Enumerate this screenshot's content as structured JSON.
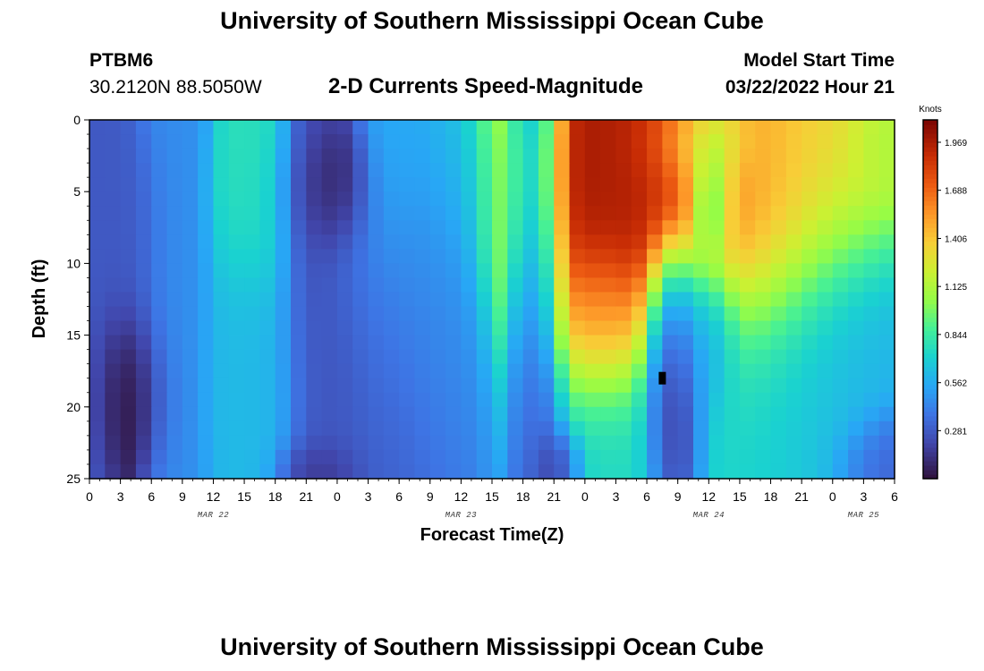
{
  "page": {
    "title_top": "University of Southern Mississippi Ocean Cube",
    "title_bottom": "University of Southern Mississippi Ocean Cube",
    "station": "PTBM6",
    "coords": "30.2120N  88.5050W",
    "subtitle": "2-D Currents Speed-Magnitude",
    "model_start_label": "Model Start Time",
    "model_start_value": "03/22/2022 Hour 21"
  },
  "chart_data": {
    "type": "heatmap",
    "title": "2-D Currents Speed-Magnitude",
    "xlabel": "Forecast Time(Z)",
    "ylabel": "Depth (ft)",
    "xlim": [
      0,
      78
    ],
    "ylim": [
      0,
      25
    ],
    "x_tick_labels": [
      "0",
      "3",
      "6",
      "9",
      "12",
      "15",
      "18",
      "21",
      "0",
      "3",
      "6",
      "9",
      "12",
      "15",
      "18",
      "21",
      "0",
      "3",
      "6",
      "9",
      "12",
      "15",
      "18",
      "21",
      "0",
      "3",
      "6"
    ],
    "y_tick_values": [
      0,
      5,
      10,
      15,
      20,
      25
    ],
    "y_tick_labels": [
      "0",
      "5",
      "10",
      "15",
      "20",
      "25"
    ],
    "day_labels": [
      {
        "label": "MAR 22",
        "x": 12
      },
      {
        "label": "MAR 23",
        "x": 36
      },
      {
        "label": "MAR 24",
        "x": 60
      },
      {
        "label": "MAR 25",
        "x": 75
      }
    ],
    "colorbar": {
      "title": "Knots",
      "min": 0,
      "max": 2.1,
      "tick_values": [
        0.281,
        0.562,
        0.844,
        1.125,
        1.406,
        1.688,
        1.969
      ],
      "tick_labels": [
        "0.281",
        "0.562",
        "0.844",
        "1.125",
        "1.406",
        "1.688",
        "1.969"
      ]
    },
    "grid_cols": 52,
    "grid_rows": 25,
    "speed_features_knots": [
      {
        "x": 0,
        "depth": 12,
        "sx": 1.5,
        "sy": 30,
        "value": 0.28
      },
      {
        "x": 3.8,
        "depth": 19.5,
        "sx": 2.2,
        "sy": 3.6,
        "value": 0.01
      },
      {
        "x": 3.8,
        "depth": 8,
        "sx": 2,
        "sy": 5,
        "value": 0.28
      },
      {
        "x": 8,
        "depth": 12,
        "sx": 1.8,
        "sy": 30,
        "value": 0.46
      },
      {
        "x": 16.5,
        "depth": 4.5,
        "sx": 2.4,
        "sy": 4.5,
        "value": 0.78
      },
      {
        "x": 16.5,
        "depth": 19,
        "sx": 3,
        "sy": 6,
        "value": 0.62
      },
      {
        "x": 21.5,
        "depth": 12,
        "sx": 1.5,
        "sy": 30,
        "value": 0.22
      },
      {
        "x": 23,
        "depth": 4.8,
        "sx": 2.4,
        "sy": 2.6,
        "value": 0.0
      },
      {
        "x": 22,
        "depth": 24.5,
        "sx": 2,
        "sy": 1.2,
        "value": 0.05
      },
      {
        "x": 28,
        "depth": 17.5,
        "sx": 4.5,
        "sy": 7,
        "value": 0.3
      },
      {
        "x": 24,
        "depth": 18.5,
        "sx": 1.6,
        "sy": 6,
        "value": 0.25
      },
      {
        "x": 29.5,
        "depth": 3,
        "sx": 1.6,
        "sy": 4,
        "value": 0.58
      },
      {
        "x": 31,
        "depth": 10,
        "sx": 4,
        "sy": 6,
        "value": 0.5
      },
      {
        "x": 35.5,
        "depth": 3.5,
        "sx": 2.5,
        "sy": 4,
        "value": 0.6
      },
      {
        "x": 34.5,
        "depth": 14,
        "sx": 2.5,
        "sy": 6,
        "value": 0.45
      },
      {
        "x": 39.5,
        "depth": 4.5,
        "sx": 1.4,
        "sy": 5,
        "value": 0.92
      },
      {
        "x": 42,
        "depth": 12,
        "sx": 0.9,
        "sy": 30,
        "value": 0.38
      },
      {
        "x": 43.8,
        "depth": 12,
        "sx": 1.3,
        "sy": 30,
        "value": 0.14
      },
      {
        "x": 45.5,
        "depth": 24,
        "sx": 1.2,
        "sy": 1.5,
        "value": 0.08
      },
      {
        "x": 49,
        "depth": 4,
        "sx": 5.5,
        "sy": 7.5,
        "value": 1.98
      },
      {
        "x": 54,
        "depth": 2.5,
        "sx": 4,
        "sy": 5,
        "value": 1.95
      },
      {
        "x": 57,
        "depth": 1.5,
        "sx": 3,
        "sy": 3,
        "value": 1.8
      },
      {
        "x": 49.5,
        "depth": 14,
        "sx": 2.5,
        "sy": 3,
        "value": 1.6
      },
      {
        "x": 49.5,
        "depth": 21,
        "sx": 4,
        "sy": 5,
        "value": 0.72
      },
      {
        "x": 56.5,
        "depth": 19.5,
        "sx": 1.5,
        "sy": 4,
        "value": 0.03
      },
      {
        "x": 56.5,
        "depth": 14,
        "sx": 1.5,
        "sy": 4,
        "value": 0.25
      },
      {
        "x": 60,
        "depth": 15,
        "sx": 1.6,
        "sy": 3,
        "value": 0.45
      },
      {
        "x": 60,
        "depth": 5.5,
        "sx": 1.2,
        "sy": 2.5,
        "value": 0.3
      },
      {
        "x": 59,
        "depth": 1.5,
        "sx": 2.5,
        "sy": 2,
        "value": 0.62
      },
      {
        "x": 66,
        "depth": 6,
        "sx": 4.5,
        "sy": 6,
        "value": 1.58
      },
      {
        "x": 71,
        "depth": 3,
        "sx": 4,
        "sy": 5,
        "value": 1.3
      },
      {
        "x": 77,
        "depth": 1.5,
        "sx": 2,
        "sy": 2,
        "value": 1.1
      },
      {
        "x": 67,
        "depth": 18.5,
        "sx": 5,
        "sy": 5,
        "value": 0.72
      },
      {
        "x": 72,
        "depth": 15,
        "sx": 4,
        "sy": 6,
        "value": 0.55
      },
      {
        "x": 77,
        "depth": 24,
        "sx": 2.5,
        "sy": 2,
        "value": 0.3
      }
    ],
    "highlight_cell": {
      "x": 55.5,
      "depth": 18
    }
  }
}
